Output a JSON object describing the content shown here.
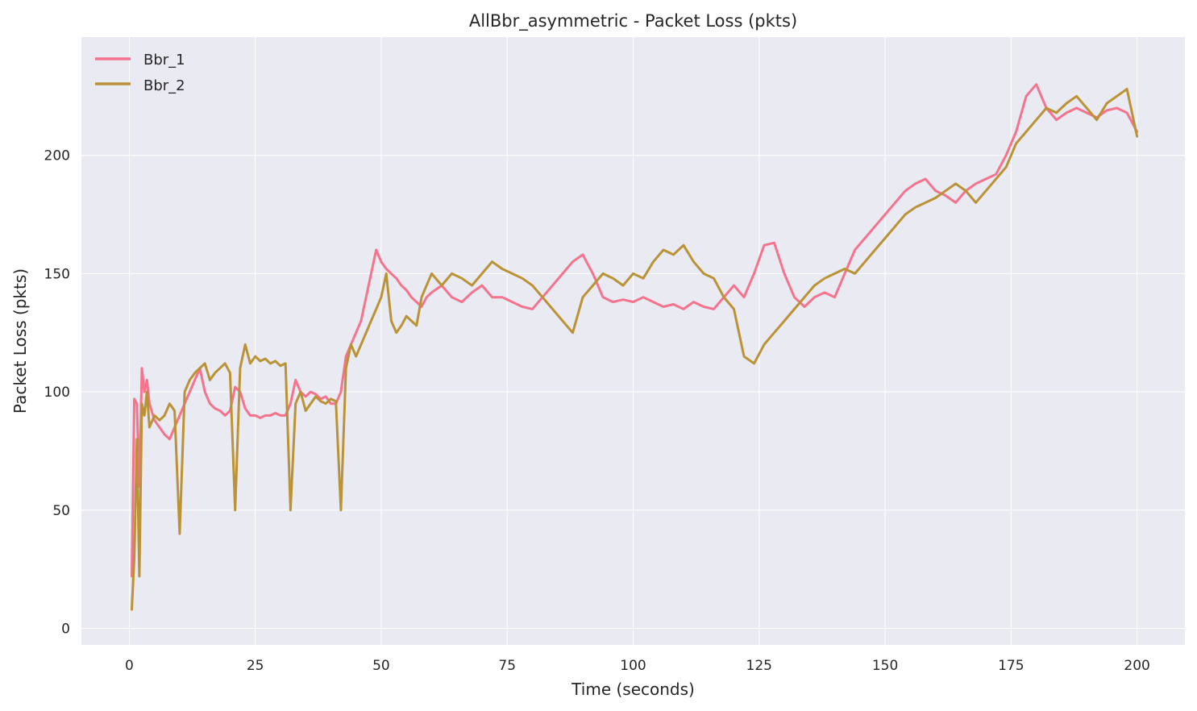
{
  "chart_data": {
    "type": "line",
    "title": "AllBbr_asymmetric - Packet Loss (pkts)",
    "xlabel": "Time (seconds)",
    "ylabel": "Packet Loss (pkts)",
    "xlim": [
      -9.5,
      209.5
    ],
    "ylim": [
      -7,
      250
    ],
    "xticks": [
      0,
      25,
      50,
      75,
      100,
      125,
      150,
      175,
      200
    ],
    "yticks": [
      0,
      50,
      100,
      150,
      200
    ],
    "grid": true,
    "legend_position": "top-left",
    "colors": {
      "background": "#eaeaf2",
      "grid": "#ffffff"
    },
    "series": [
      {
        "name": "Bbr_1",
        "color": "#f5738c",
        "x": [
          0.5,
          1,
          1.5,
          2,
          2.5,
          3,
          3.5,
          4,
          5,
          6,
          7,
          8,
          9,
          10,
          11,
          12,
          13,
          14,
          15,
          16,
          17,
          18,
          19,
          20,
          21,
          22,
          23,
          24,
          25,
          26,
          27,
          28,
          29,
          30,
          31,
          32,
          33,
          34,
          35,
          36,
          37,
          38,
          39,
          40,
          41,
          42,
          43,
          44,
          45,
          46,
          47,
          48,
          49,
          50,
          51,
          52,
          53,
          54,
          55,
          56,
          57,
          58,
          59,
          60,
          62,
          64,
          66,
          68,
          70,
          72,
          74,
          76,
          78,
          80,
          82,
          84,
          86,
          88,
          90,
          92,
          94,
          96,
          98,
          100,
          102,
          104,
          106,
          108,
          110,
          112,
          114,
          116,
          118,
          120,
          122,
          124,
          126,
          128,
          130,
          132,
          134,
          136,
          138,
          140,
          142,
          144,
          146,
          148,
          150,
          152,
          154,
          156,
          158,
          160,
          162,
          164,
          166,
          168,
          170,
          172,
          174,
          176,
          178,
          180,
          182,
          184,
          186,
          188,
          190,
          192,
          194,
          196,
          198,
          200
        ],
        "y": [
          22,
          97,
          95,
          60,
          110,
          100,
          105,
          95,
          88,
          85,
          82,
          80,
          85,
          90,
          95,
          100,
          105,
          110,
          100,
          95,
          93,
          92,
          90,
          92,
          102,
          100,
          93,
          90,
          90,
          89,
          90,
          90,
          91,
          90,
          90,
          95,
          105,
          100,
          98,
          100,
          99,
          97,
          98,
          95,
          95,
          100,
          115,
          120,
          125,
          130,
          140,
          150,
          160,
          155,
          152,
          150,
          148,
          145,
          143,
          140,
          138,
          136,
          140,
          142,
          145,
          140,
          138,
          142,
          145,
          140,
          140,
          138,
          136,
          135,
          140,
          145,
          150,
          155,
          158,
          150,
          140,
          138,
          139,
          138,
          140,
          138,
          136,
          137,
          135,
          138,
          136,
          135,
          140,
          145,
          140,
          150,
          162,
          163,
          150,
          140,
          136,
          140,
          142,
          140,
          150,
          160,
          165,
          170,
          175,
          180,
          185,
          188,
          190,
          185,
          183,
          180,
          185,
          188,
          190,
          192,
          200,
          210,
          225,
          230,
          220,
          215,
          218,
          220,
          218,
          216,
          219,
          220,
          218,
          210
        ]
      },
      {
        "name": "Bbr_2",
        "color": "#ba9337",
        "x": [
          0.5,
          1,
          1.5,
          2,
          2.5,
          3,
          3.5,
          4,
          5,
          6,
          7,
          8,
          9,
          10,
          11,
          12,
          13,
          14,
          15,
          16,
          17,
          18,
          19,
          20,
          21,
          22,
          23,
          24,
          25,
          26,
          27,
          28,
          29,
          30,
          31,
          32,
          33,
          34,
          35,
          36,
          37,
          38,
          39,
          40,
          41,
          42,
          43,
          44,
          45,
          46,
          47,
          48,
          49,
          50,
          51,
          52,
          53,
          54,
          55,
          56,
          57,
          58,
          59,
          60,
          62,
          64,
          66,
          68,
          70,
          72,
          74,
          76,
          78,
          80,
          82,
          84,
          86,
          88,
          90,
          92,
          94,
          96,
          98,
          100,
          102,
          104,
          106,
          108,
          110,
          112,
          114,
          116,
          118,
          120,
          122,
          124,
          126,
          128,
          130,
          132,
          134,
          136,
          138,
          140,
          142,
          144,
          146,
          148,
          150,
          152,
          154,
          156,
          158,
          160,
          162,
          164,
          166,
          168,
          170,
          172,
          174,
          176,
          178,
          180,
          182,
          184,
          186,
          188,
          190,
          192,
          194,
          196,
          198,
          200
        ],
        "y": [
          8,
          30,
          80,
          22,
          95,
          90,
          100,
          85,
          90,
          88,
          90,
          95,
          92,
          40,
          100,
          105,
          108,
          110,
          112,
          105,
          108,
          110,
          112,
          108,
          50,
          110,
          120,
          112,
          115,
          113,
          114,
          112,
          113,
          111,
          112,
          50,
          95,
          100,
          92,
          95,
          98,
          96,
          95,
          97,
          96,
          50,
          110,
          120,
          115,
          120,
          125,
          130,
          135,
          140,
          150,
          130,
          125,
          128,
          132,
          130,
          128,
          140,
          145,
          150,
          145,
          150,
          148,
          145,
          150,
          155,
          152,
          150,
          148,
          145,
          140,
          135,
          130,
          125,
          140,
          145,
          150,
          148,
          145,
          150,
          148,
          155,
          160,
          158,
          162,
          155,
          150,
          148,
          140,
          135,
          115,
          112,
          120,
          125,
          130,
          135,
          140,
          145,
          148,
          150,
          152,
          150,
          155,
          160,
          165,
          170,
          175,
          178,
          180,
          182,
          185,
          188,
          185,
          180,
          185,
          190,
          195,
          205,
          210,
          215,
          220,
          218,
          222,
          225,
          220,
          215,
          222,
          225,
          228,
          208
        ]
      }
    ]
  }
}
